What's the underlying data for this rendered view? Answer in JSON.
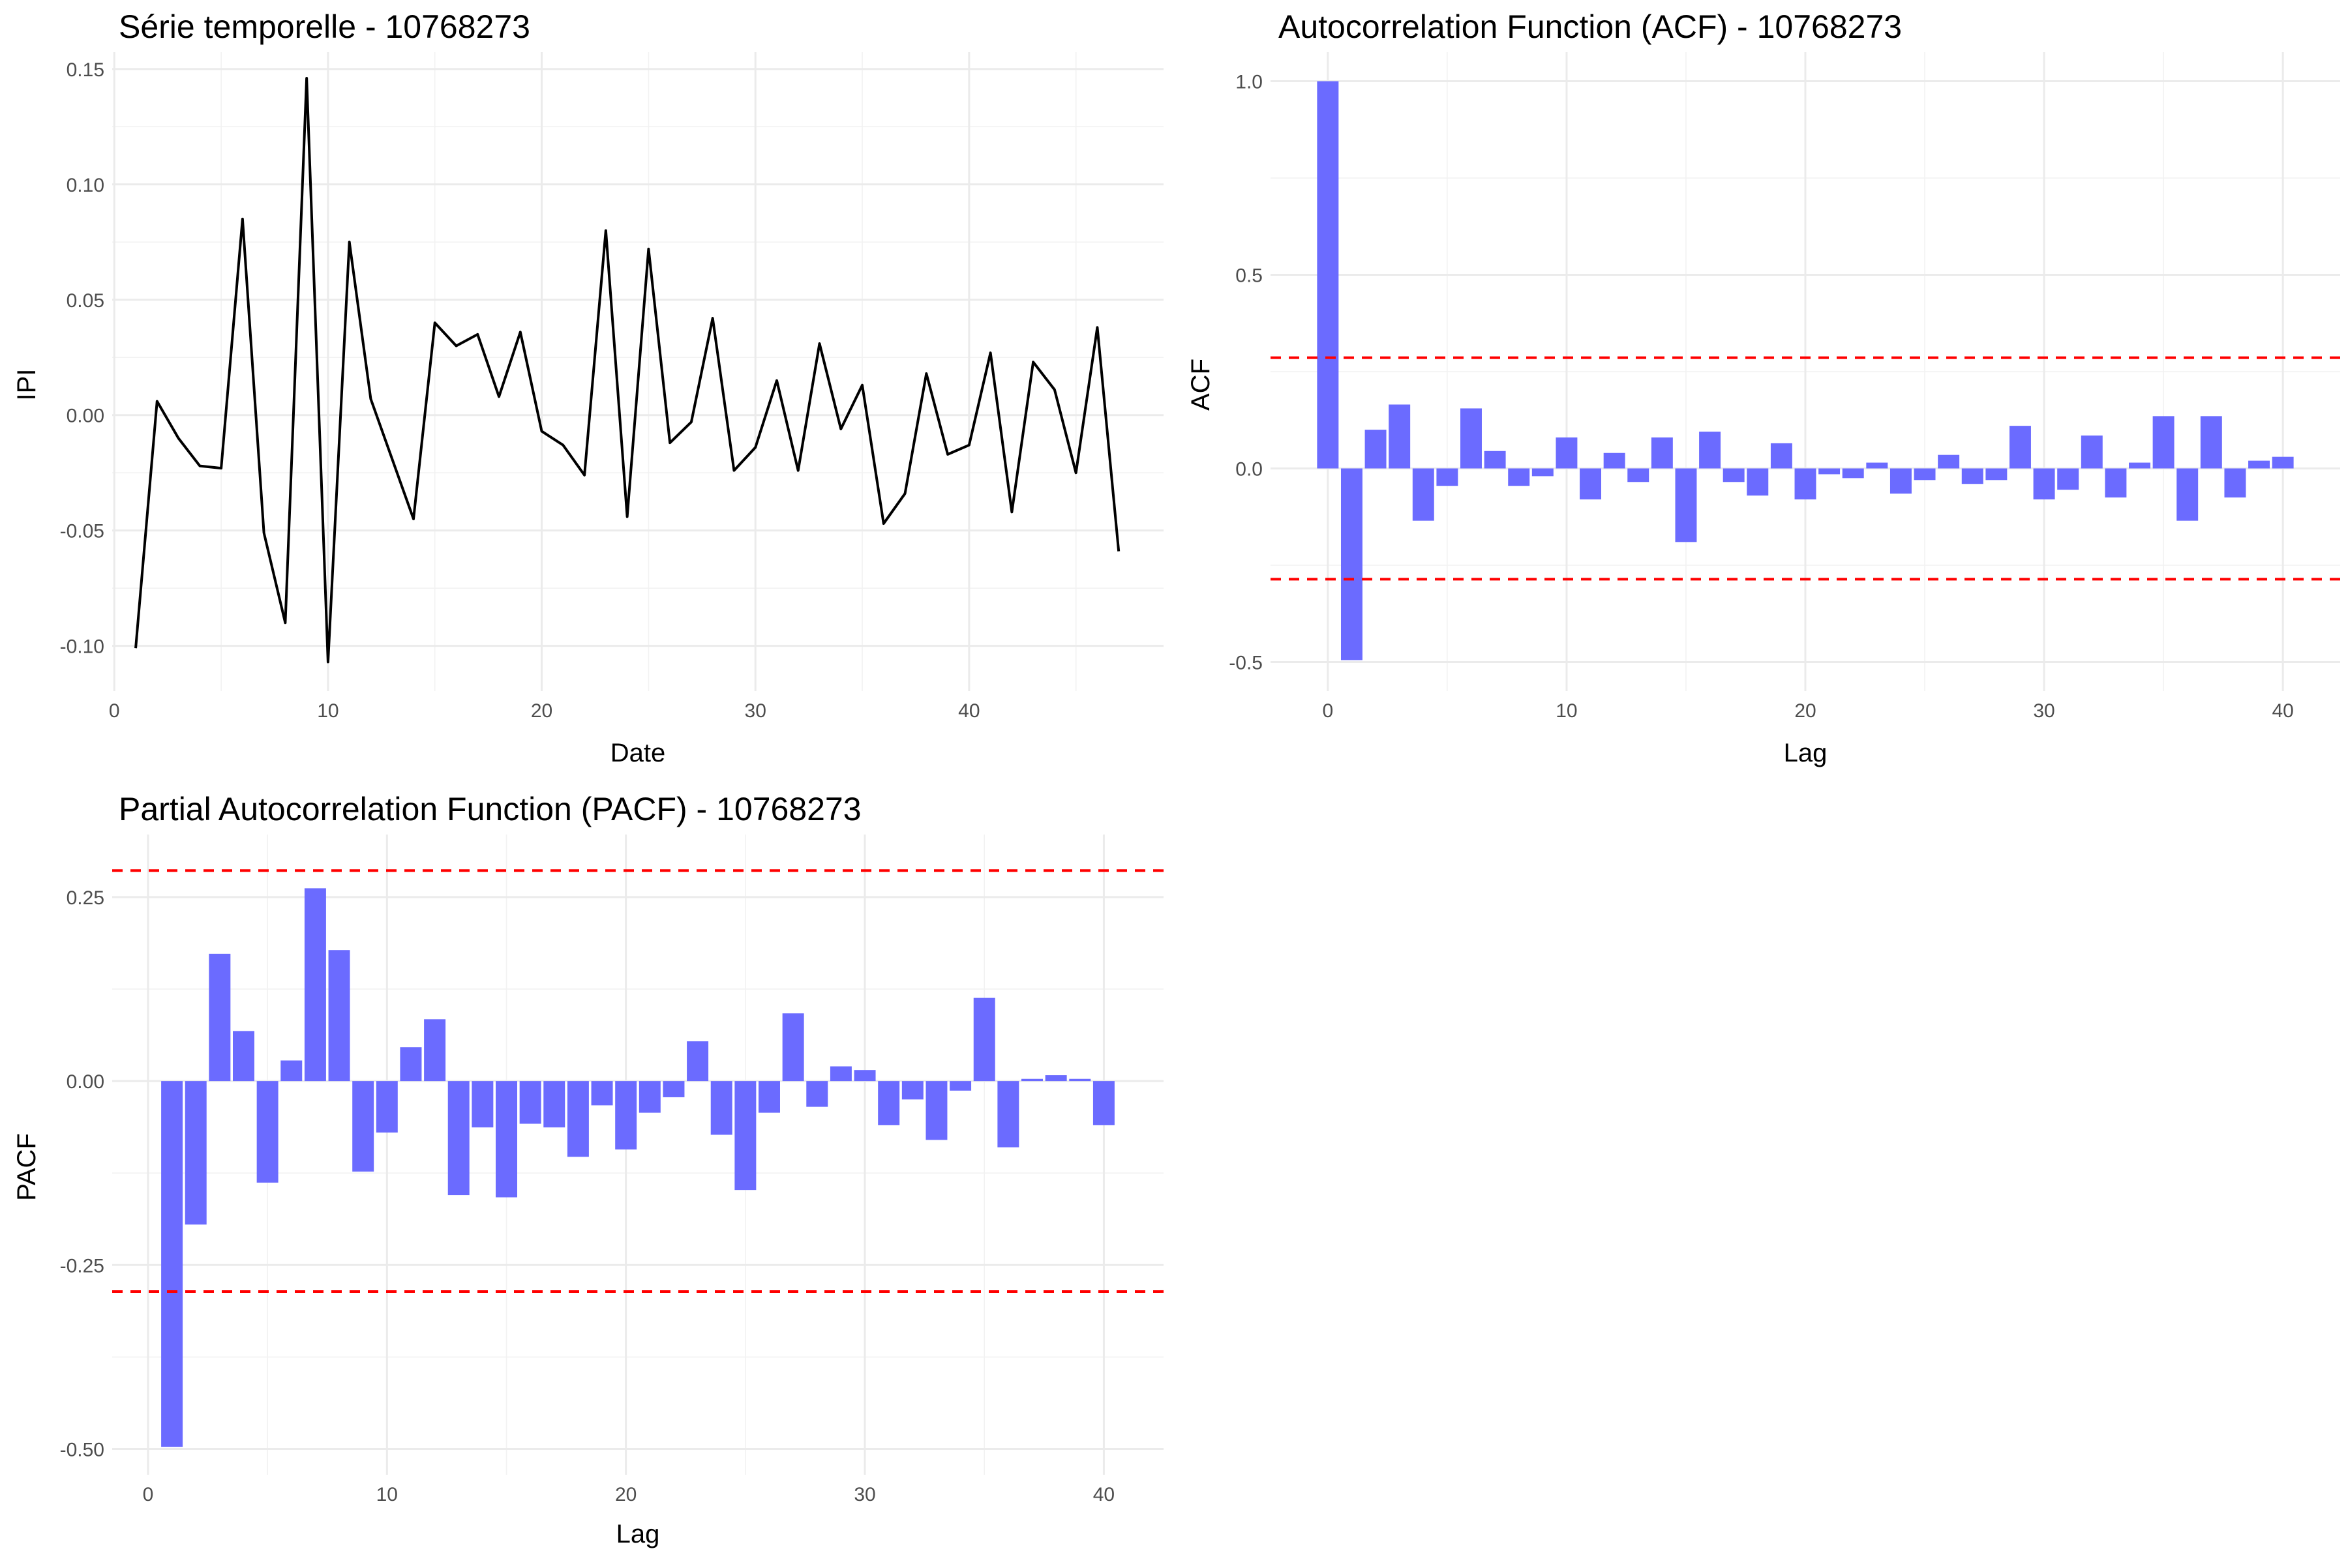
{
  "colors": {
    "line": "#000000",
    "bar": "#6b6bff",
    "threshold": "#ff0000",
    "grid_major": "#ebebeb",
    "grid_minor": "#f2f2f2"
  },
  "chart_data": [
    {
      "id": "series",
      "type": "line",
      "title": "Série temporelle - 10768273",
      "xlabel": "Date",
      "ylabel": "IPI",
      "xlim": [
        -0.1,
        49.1
      ],
      "ylim": [
        -0.1196,
        0.1573
      ],
      "xticks": [
        0,
        10,
        20,
        30,
        40
      ],
      "yticks": [
        -0.1,
        -0.05,
        0.0,
        0.05,
        0.1,
        0.15
      ],
      "ytick_labels": [
        "-0.10",
        "-0.05",
        "0.00",
        "0.05",
        "0.10",
        "0.15"
      ],
      "grid": true,
      "series": [
        {
          "x": [
            1,
            2,
            3,
            4,
            5,
            6,
            7,
            8,
            9,
            10,
            11,
            12,
            13,
            14,
            15,
            16,
            17,
            18,
            19,
            20,
            21,
            22,
            23,
            24,
            25,
            26,
            27,
            28,
            29,
            30,
            31,
            32,
            33,
            34,
            35,
            36,
            37,
            38,
            39,
            40,
            41,
            42,
            43,
            44,
            45,
            46,
            47
          ],
          "values": [
            -0.101,
            0.006,
            -0.01,
            -0.022,
            -0.023,
            0.085,
            -0.051,
            -0.09,
            0.146,
            -0.107,
            0.075,
            0.007,
            -0.019,
            -0.045,
            0.04,
            0.03,
            0.035,
            0.008,
            0.036,
            -0.007,
            -0.013,
            -0.026,
            0.08,
            -0.044,
            0.072,
            -0.012,
            -0.003,
            0.042,
            -0.024,
            -0.014,
            0.015,
            -0.024,
            0.031,
            -0.006,
            0.013,
            -0.047,
            -0.034,
            0.018,
            -0.017,
            -0.013,
            0.027,
            -0.042,
            0.023,
            0.011,
            -0.025,
            0.038,
            -0.059
          ]
        }
      ]
    },
    {
      "id": "acf",
      "type": "bar",
      "title": "Autocorrelation Function (ACF) - 10768273",
      "xlabel": "Lag",
      "ylabel": "ACF",
      "xlim": [
        -2.4,
        42.4
      ],
      "ylim": [
        -0.575,
        1.075
      ],
      "xticks": [
        0,
        10,
        20,
        30,
        40
      ],
      "yticks": [
        -0.5,
        0.0,
        0.5,
        1.0
      ],
      "ytick_labels": [
        "-0.5",
        "0.0",
        "0.5",
        "1.0"
      ],
      "thresholds": [
        0.286,
        -0.286
      ],
      "grid": true,
      "lags": [
        0,
        1,
        2,
        3,
        4,
        5,
        6,
        7,
        8,
        9,
        10,
        11,
        12,
        13,
        14,
        15,
        16,
        17,
        18,
        19,
        20,
        21,
        22,
        23,
        24,
        25,
        26,
        27,
        28,
        29,
        30,
        31,
        32,
        33,
        34,
        35,
        36,
        37,
        38,
        39,
        40
      ],
      "values": [
        1.0,
        -0.495,
        0.1,
        0.165,
        -0.135,
        -0.045,
        0.155,
        0.045,
        -0.045,
        -0.02,
        0.08,
        -0.08,
        0.04,
        -0.035,
        0.08,
        -0.19,
        0.095,
        -0.035,
        -0.07,
        0.065,
        -0.08,
        -0.015,
        -0.025,
        0.015,
        -0.065,
        -0.03,
        0.035,
        -0.04,
        -0.03,
        0.11,
        -0.08,
        -0.055,
        0.085,
        -0.075,
        0.015,
        0.135,
        -0.135,
        0.135,
        -0.075,
        0.02,
        0.03
      ]
    },
    {
      "id": "pacf",
      "type": "bar",
      "title": "Partial Autocorrelation Function (PACF) - 10768273",
      "xlabel": "Lag",
      "ylabel": "PACF",
      "xlim": [
        -1.5,
        42.5
      ],
      "ylim": [
        -0.535,
        0.335
      ],
      "xticks": [
        0,
        10,
        20,
        30,
        40
      ],
      "yticks": [
        -0.5,
        -0.25,
        0.0,
        0.25
      ],
      "ytick_labels": [
        "-0.50",
        "-0.25",
        "0.00",
        "0.25"
      ],
      "thresholds": [
        0.286,
        -0.286
      ],
      "grid": true,
      "lags": [
        1,
        2,
        3,
        4,
        5,
        6,
        7,
        8,
        9,
        10,
        11,
        12,
        13,
        14,
        15,
        16,
        17,
        18,
        19,
        20,
        21,
        22,
        23,
        24,
        25,
        26,
        27,
        28,
        29,
        30,
        31,
        32,
        33,
        34,
        35,
        36,
        37,
        38,
        39,
        40
      ],
      "values": [
        -0.497,
        -0.195,
        0.173,
        0.068,
        -0.138,
        0.028,
        0.262,
        0.178,
        -0.123,
        -0.07,
        0.046,
        0.084,
        -0.155,
        -0.063,
        -0.158,
        -0.058,
        -0.063,
        -0.103,
        -0.033,
        -0.093,
        -0.043,
        -0.022,
        0.054,
        -0.073,
        -0.148,
        -0.043,
        0.092,
        -0.035,
        0.02,
        0.015,
        -0.06,
        -0.025,
        -0.08,
        -0.013,
        0.113,
        -0.09,
        0.003,
        0.008,
        0.003,
        -0.06
      ]
    }
  ]
}
